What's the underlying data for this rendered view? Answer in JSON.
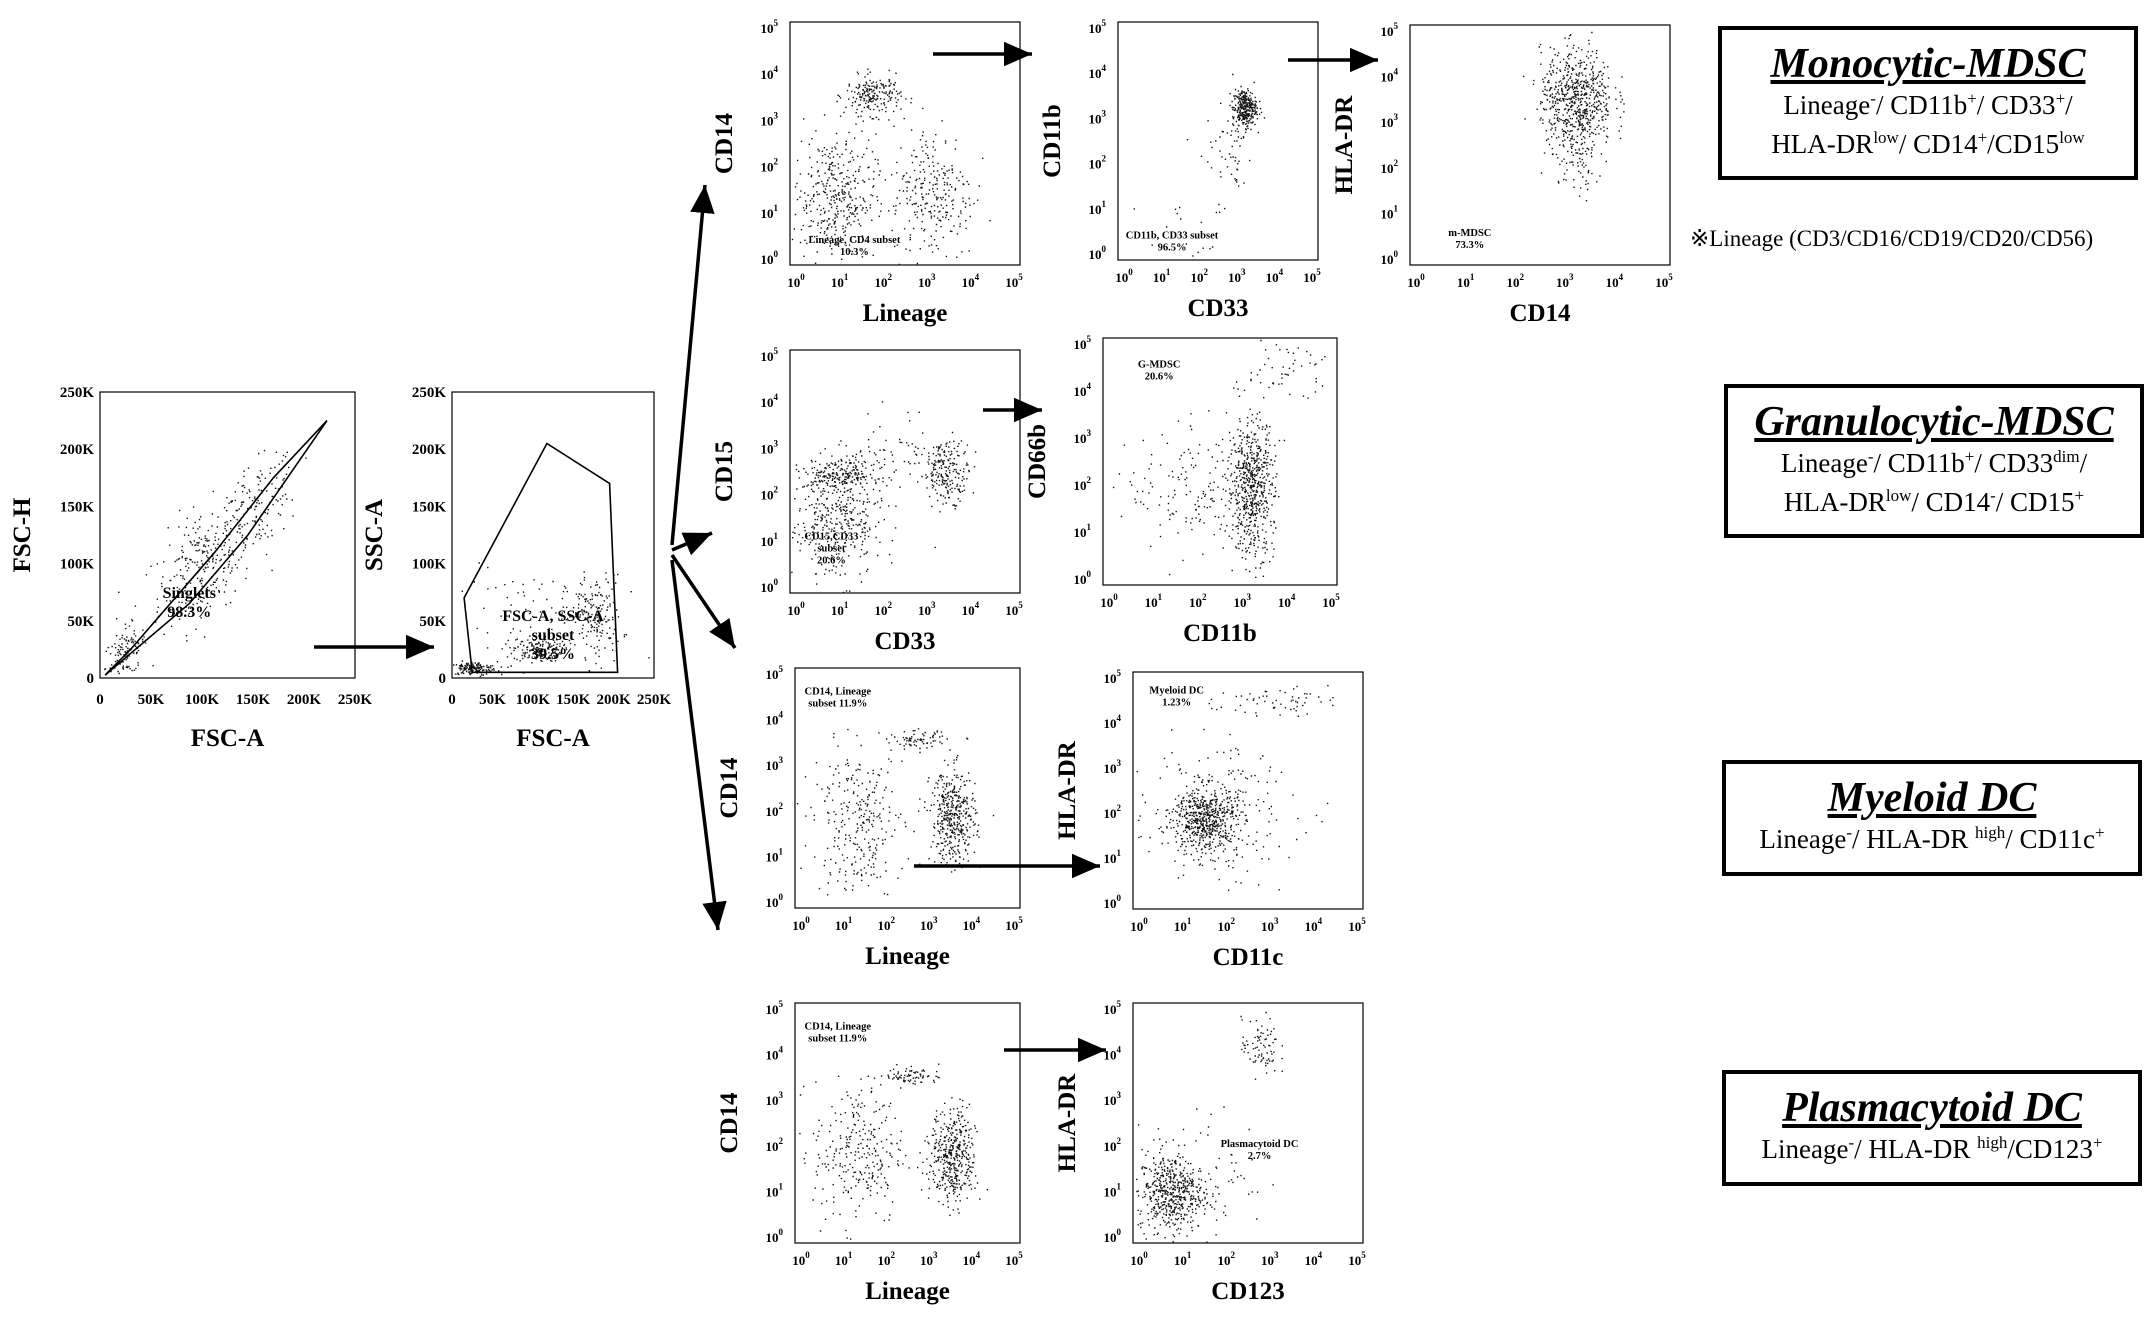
{
  "plots": [
    {
      "id": "p1",
      "xlabel": "FSC-A",
      "ylabel": "FSC-H",
      "scale": "lin",
      "gate_label": [
        "Singlets",
        "98.3%"
      ],
      "xticks": [
        "0",
        "50K",
        "100K",
        "150K",
        "200K",
        "250K"
      ],
      "yticks": [
        "0",
        "50K",
        "100K",
        "150K",
        "200K",
        "250K"
      ]
    },
    {
      "id": "p2",
      "xlabel": "FSC-A",
      "ylabel": "SSC-A",
      "scale": "lin",
      "gate_label": [
        "FSC-A, SSC-A",
        "subset",
        "39.5%"
      ],
      "xticks": [
        "0",
        "50K",
        "100K",
        "150K",
        "200K",
        "250K"
      ],
      "yticks": [
        "0",
        "50K",
        "100K",
        "150K",
        "200K",
        "250K"
      ]
    },
    {
      "id": "m1",
      "xlabel": "Lineage",
      "ylabel": "CD14",
      "scale": "log",
      "gate_label": [
        "Lineage, CD4 subset",
        "10.3%"
      ]
    },
    {
      "id": "m2",
      "xlabel": "CD33",
      "ylabel": "CD11b",
      "scale": "log",
      "gate_label": [
        "CD11b, CD33 subset",
        "96.5%"
      ]
    },
    {
      "id": "m3",
      "xlabel": "CD14",
      "ylabel": "HLA-DR",
      "scale": "log",
      "gate_label": [
        "m-MDSC",
        "73.3%"
      ]
    },
    {
      "id": "g1",
      "xlabel": "CD33",
      "ylabel": "CD15",
      "scale": "log",
      "gate_label": [
        "CD15,CD33",
        "subset",
        "20.6%"
      ]
    },
    {
      "id": "g2",
      "xlabel": "CD11b",
      "ylabel": "CD66b",
      "scale": "log",
      "gate_label": [
        "G-MDSC",
        "20.6%"
      ]
    },
    {
      "id": "d1",
      "xlabel": "Lineage",
      "ylabel": "CD14",
      "scale": "log",
      "gate_label": [
        "CD14, Lineage",
        "subset 11.9%"
      ]
    },
    {
      "id": "d2",
      "xlabel": "CD11c",
      "ylabel": "HLA-DR",
      "scale": "log",
      "gate_label": [
        "Myeloid DC",
        "1.23%"
      ]
    },
    {
      "id": "c1",
      "xlabel": "Lineage",
      "ylabel": "CD14",
      "scale": "log",
      "gate_label": [
        "CD14, Lineage",
        "subset 11.9%"
      ]
    },
    {
      "id": "c2",
      "xlabel": "CD123",
      "ylabel": "HLA-DR",
      "scale": "log",
      "gate_label": [
        "Plasmacytoid DC",
        "2.7%"
      ]
    }
  ],
  "log_ticks": [
    "10",
    "10",
    "10",
    "10",
    "10",
    "10"
  ],
  "log_exps": [
    "0",
    "1",
    "2",
    "3",
    "4",
    "5"
  ],
  "populations": [
    {
      "id": "mono",
      "title": "Monocytic-MDSC",
      "lines": [
        [
          {
            "t": "Lineage"
          },
          {
            "s": "-"
          },
          {
            "t": "/ CD11b"
          },
          {
            "s": "+"
          },
          {
            "t": "/ CD33"
          },
          {
            "s": "+"
          },
          {
            "t": "/"
          }
        ],
        [
          {
            "t": "HLA-DR"
          },
          {
            "s": "low"
          },
          {
            "t": "/ CD14"
          },
          {
            "s": "+"
          },
          {
            "t": "/CD15"
          },
          {
            "s": "low"
          }
        ]
      ]
    },
    {
      "id": "gran",
      "title": "Granulocytic-MDSC",
      "lines": [
        [
          {
            "t": "Lineage"
          },
          {
            "s": "-"
          },
          {
            "t": "/ CD11b"
          },
          {
            "s": "+"
          },
          {
            "t": "/ CD33"
          },
          {
            "s": "dim"
          },
          {
            "t": "/"
          }
        ],
        [
          {
            "t": "HLA-DR"
          },
          {
            "s": "low"
          },
          {
            "t": "/ CD14"
          },
          {
            "s": "-"
          },
          {
            "t": "/ CD15"
          },
          {
            "s": "+"
          }
        ]
      ]
    },
    {
      "id": "mdc",
      "title": "Myeloid DC",
      "lines": [
        [
          {
            "t": "Lineage"
          },
          {
            "s": "-"
          },
          {
            "t": "/ HLA-DR "
          },
          {
            "s": "high"
          },
          {
            "t": "/ CD11c"
          },
          {
            "s": "+"
          }
        ]
      ]
    },
    {
      "id": "pdc",
      "title": "Plasmacytoid DC",
      "lines": [
        [
          {
            "t": "Lineage"
          },
          {
            "s": "-"
          },
          {
            "t": "/ HLA-DR "
          },
          {
            "s": "high"
          },
          {
            "t": "/CD123"
          },
          {
            "s": "+"
          }
        ]
      ]
    }
  ],
  "footnote": "※Lineage (CD3/CD16/CD19/CD20/CD56)"
}
